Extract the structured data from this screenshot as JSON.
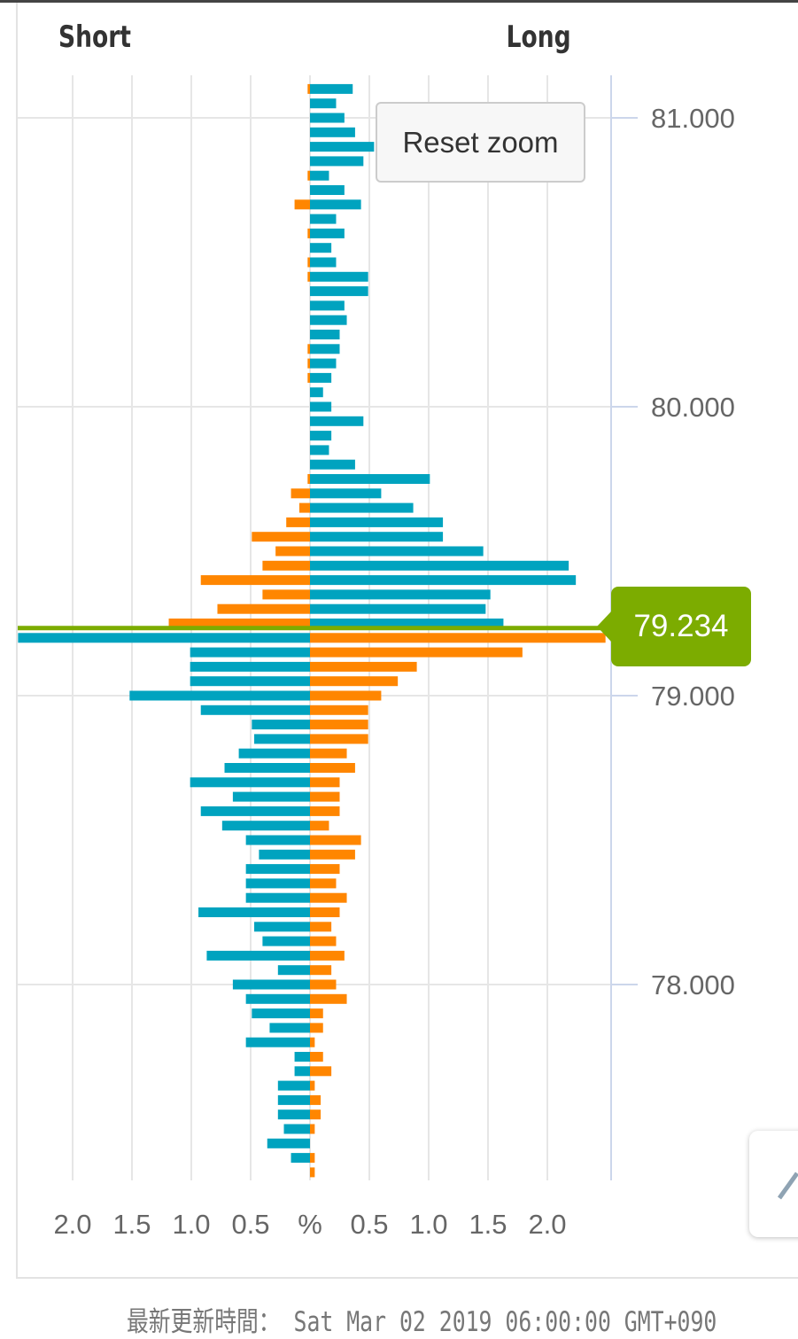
{
  "header": {
    "short_label": "Short",
    "long_label": "Long"
  },
  "reset_zoom_label": "Reset zoom",
  "footer": {
    "updated_text": "最新更新時間： Sat Mar 02 2019 06:00:00 GMT+090"
  },
  "colors": {
    "teal": "#00a3bf",
    "orange": "#ff8600",
    "current_price": "#7cac00"
  },
  "chart_data": {
    "type": "bar",
    "orientation": "horizontal-diverging",
    "current_price": 79.234,
    "current_price_label": "79.234",
    "price_step": 0.05,
    "price_ticks": [
      "81.000",
      "80.000",
      "79.000",
      "78.000"
    ],
    "price_tick_values": [
      81,
      80,
      79,
      78
    ],
    "x_tick_labels": [
      "2.0",
      "1.5",
      "1.0",
      "0.5",
      "%",
      "0.5",
      "1.0",
      "1.5",
      "2.0"
    ],
    "x_tick_values": [
      -2,
      -1.5,
      -1,
      -0.5,
      0,
      0.5,
      1,
      1.5,
      2
    ],
    "xlim": [
      -2.46,
      2.5
    ],
    "ylim": [
      77.25,
      81.2
    ],
    "grid": true,
    "color_rule": "above current price: long side teal, short side orange; below: short side teal, long side orange",
    "prices": [
      81.1,
      81.05,
      81.0,
      80.95,
      80.9,
      80.85,
      80.8,
      80.75,
      80.7,
      80.65,
      80.6,
      80.55,
      80.5,
      80.45,
      80.4,
      80.35,
      80.3,
      80.25,
      80.2,
      80.15,
      80.1,
      80.05,
      80.0,
      79.95,
      79.9,
      79.85,
      79.8,
      79.75,
      79.7,
      79.65,
      79.6,
      79.55,
      79.5,
      79.45,
      79.4,
      79.35,
      79.3,
      79.25,
      79.2,
      79.15,
      79.1,
      79.05,
      79.0,
      78.95,
      78.9,
      78.85,
      78.8,
      78.75,
      78.7,
      78.65,
      78.6,
      78.55,
      78.5,
      78.45,
      78.4,
      78.35,
      78.3,
      78.25,
      78.2,
      78.15,
      78.1,
      78.05,
      78.0,
      77.95,
      77.9,
      77.85,
      77.8,
      77.75,
      77.7,
      77.65,
      77.6,
      77.55,
      77.5,
      77.45,
      77.4,
      77.35
    ],
    "series": [
      {
        "name": "Long",
        "values": [
          0.36,
          0.22,
          0.29,
          0.38,
          0.54,
          0.45,
          0.16,
          0.29,
          0.43,
          0.22,
          0.29,
          0.18,
          0.22,
          0.49,
          0.49,
          0.29,
          0.31,
          0.25,
          0.25,
          0.22,
          0.18,
          0.11,
          0.18,
          0.45,
          0.18,
          0.16,
          0.38,
          1.01,
          0.6,
          0.87,
          1.12,
          1.12,
          1.46,
          2.18,
          2.24,
          1.52,
          1.48,
          1.63,
          2.49,
          1.79,
          0.9,
          0.74,
          0.6,
          0.49,
          0.49,
          0.49,
          0.31,
          0.38,
          0.25,
          0.25,
          0.25,
          0.16,
          0.43,
          0.38,
          0.25,
          0.22,
          0.31,
          0.25,
          0.18,
          0.22,
          0.29,
          0.18,
          0.22,
          0.31,
          0.11,
          0.11,
          0.04,
          0.11,
          0.18,
          0.04,
          0.09,
          0.09,
          0.04,
          0,
          0.04,
          0.04
        ]
      },
      {
        "name": "Short",
        "values": [
          0.02,
          0,
          0,
          0,
          0,
          0,
          0.02,
          0,
          0.13,
          0,
          0.02,
          0,
          0.02,
          0.02,
          0,
          0,
          0,
          0,
          0.02,
          0.02,
          0.02,
          0,
          0,
          0,
          0,
          0,
          0,
          0.02,
          0.16,
          0.09,
          0.2,
          0.49,
          0.29,
          0.4,
          0.92,
          0.4,
          0.78,
          1.19,
          2.46,
          1.01,
          1.01,
          1.01,
          1.52,
          0.92,
          0.49,
          0.47,
          0.6,
          0.72,
          1.01,
          0.65,
          0.92,
          0.74,
          0.54,
          0.43,
          0.54,
          0.54,
          0.54,
          0.94,
          0.47,
          0.4,
          0.87,
          0.27,
          0.65,
          0.54,
          0.49,
          0.34,
          0.54,
          0.13,
          0.13,
          0.27,
          0.27,
          0.27,
          0.22,
          0.36,
          0.16,
          0
        ]
      }
    ]
  }
}
